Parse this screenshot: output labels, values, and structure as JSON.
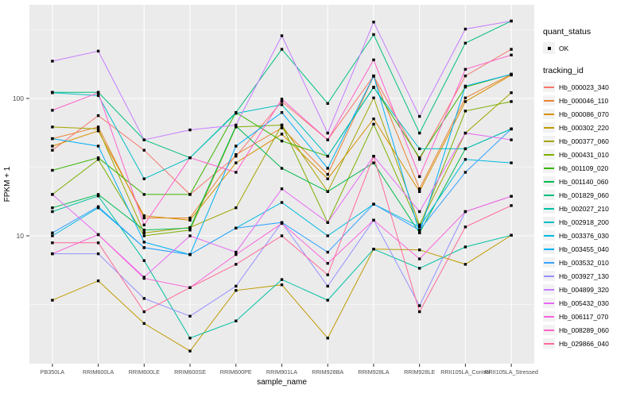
{
  "figure": {
    "background": "#ffffff",
    "panel_background": "#EBEBEB",
    "grid_color": "#FFFFFF",
    "point_color": "#000000",
    "tick_text_color": "#4D4D4D",
    "axis_title_color": "#000000"
  },
  "legend": {
    "quant_status_title": "quant_status",
    "quant_status_items": [
      "OK"
    ],
    "tracking_title": "tracking_id"
  },
  "chart_data": {
    "type": "line",
    "title": "",
    "xlabel": "sample_name",
    "ylabel": "FPKM + 1",
    "yscale": "log10",
    "ylim": [
      1.2,
      470
    ],
    "yticks": [
      10,
      100
    ],
    "ytick_labels": [
      "10",
      "100"
    ],
    "grid": "white major+minor gridlines on gray panel, log minor at half-decades",
    "legend_position": "right",
    "marker": "small black square (quant_status OK)",
    "categories": [
      "PB350LA",
      "RRIM600LA",
      "RRIM600LE",
      "RRIM600SE",
      "RRIM600PE",
      "RRIM901LA",
      "RRIM928BA",
      "RRIM928LA",
      "RRIM928LE",
      "RRII105LA_Control",
      "RRII105LA_Stressed"
    ],
    "series": [
      {
        "name": "Hb_000023_340",
        "color": "#F8766D",
        "values": [
          42,
          75,
          42,
          20,
          38,
          95,
          50,
          146,
          36,
          146,
          228
        ]
      },
      {
        "name": "Hb_000046_110",
        "color": "#EA8331",
        "values": [
          51,
          62,
          13.5,
          13.5,
          39,
          61,
          28,
          145,
          22,
          101,
          150
        ]
      },
      {
        "name": "Hb_000086_070",
        "color": "#D89000",
        "values": [
          45,
          58,
          14,
          13,
          34,
          55,
          26,
          71,
          21,
          95,
          148
        ]
      },
      {
        "name": "Hb_000302_220",
        "color": "#C09B00",
        "values": [
          3.4,
          4.7,
          2.3,
          1.45,
          4.0,
          4.4,
          1.8,
          8,
          7.9,
          6.2,
          10.1
        ]
      },
      {
        "name": "Hb_000377_060",
        "color": "#A3A500",
        "values": [
          62,
          60,
          10.5,
          11.5,
          16,
          64,
          21,
          101,
          12,
          56,
          110
        ]
      },
      {
        "name": "Hb_000431_010",
        "color": "#7CAE00",
        "values": [
          20,
          36,
          10,
          11,
          62,
          64,
          12.5,
          65,
          11.6,
          81,
          95
        ]
      },
      {
        "name": "Hb_001109_020",
        "color": "#39B600",
        "values": [
          30,
          37,
          20,
          20,
          79,
          49,
          38,
          121,
          37,
          121,
          150
        ]
      },
      {
        "name": "Hb_001140_060",
        "color": "#00BB4E",
        "values": [
          16,
          20,
          11,
          11.4,
          63,
          31,
          21,
          34,
          10.5,
          43,
          60
        ]
      },
      {
        "name": "Hb_001829_060",
        "color": "#00BF7D",
        "values": [
          111,
          111,
          50,
          37,
          79,
          228,
          92,
          292,
          56,
          253,
          366
        ]
      },
      {
        "name": "Hb_002027_210",
        "color": "#00C1A3",
        "values": [
          15,
          19.5,
          6.6,
          1.8,
          2.4,
          4.8,
          3.4,
          8,
          5.8,
          8.3,
          10.1
        ]
      },
      {
        "name": "Hb_002918_200",
        "color": "#00BFC4",
        "values": [
          110,
          105,
          26,
          37,
          78,
          90,
          38,
          120,
          43,
          43,
          60
        ]
      },
      {
        "name": "Hb_003376_030",
        "color": "#00BAE0",
        "values": [
          10,
          16,
          8.2,
          7.3,
          11.4,
          17.5,
          10,
          17,
          11.6,
          36,
          34
        ]
      },
      {
        "name": "Hb_003455_040",
        "color": "#00B0F6",
        "values": [
          51,
          45,
          9,
          7.3,
          45,
          79,
          31,
          146,
          10.5,
          123,
          150
        ]
      },
      {
        "name": "Hb_003532_010",
        "color": "#35A2FF",
        "values": [
          10.5,
          16.3,
          8.2,
          7.3,
          11.4,
          12.5,
          7.6,
          17,
          11,
          29,
          60
        ]
      },
      {
        "name": "Hb_003927_130",
        "color": "#9590FF",
        "values": [
          7.4,
          7.4,
          3.5,
          2.6,
          4.3,
          12.5,
          4.3,
          13,
          3.1,
          15,
          19.4
        ]
      },
      {
        "name": "Hb_004899_320",
        "color": "#C77CFF",
        "values": [
          187,
          221,
          50,
          59,
          64,
          286,
          56,
          360,
          74,
          320,
          366
        ]
      },
      {
        "name": "Hb_005432_030",
        "color": "#E76BF3",
        "values": [
          20,
          10.2,
          5,
          10,
          7.6,
          22,
          12.5,
          38,
          15,
          56,
          50
        ]
      },
      {
        "name": "Hb_006117_070",
        "color": "#FA62DB",
        "values": [
          7.4,
          10.2,
          4.9,
          4.2,
          7.3,
          12.3,
          6.3,
          13,
          6.8,
          15,
          19.4
        ]
      },
      {
        "name": "Hb_008289_060",
        "color": "#FF61CC",
        "values": [
          82,
          110,
          12,
          37,
          29,
          99,
          50,
          191,
          27,
          163,
          207
        ]
      },
      {
        "name": "Hb_029866_040",
        "color": "#FF6A98",
        "values": [
          8.9,
          8.9,
          2.8,
          4.2,
          6.2,
          10,
          5.2,
          38,
          2.8,
          11.6,
          16.6
        ]
      }
    ]
  }
}
